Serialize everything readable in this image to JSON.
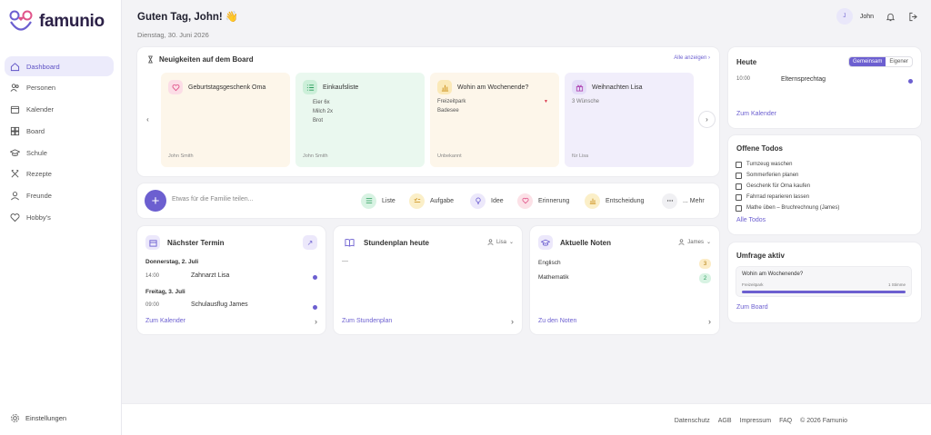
{
  "brand": {
    "name": "famunio"
  },
  "nav": {
    "items": [
      {
        "label": "Dashboard",
        "icon": "home-icon"
      },
      {
        "label": "Personen",
        "icon": "users-icon"
      },
      {
        "label": "Kalender",
        "icon": "calendar-icon"
      },
      {
        "label": "Board",
        "icon": "board-icon"
      },
      {
        "label": "Schule",
        "icon": "school-icon"
      },
      {
        "label": "Rezepte",
        "icon": "recipes-icon"
      },
      {
        "label": "Freunde",
        "icon": "user-icon"
      },
      {
        "label": "Hobby's",
        "icon": "heart-icon"
      }
    ],
    "settings": "Einstellungen"
  },
  "header": {
    "greeting": "Guten Tag, John! 👋",
    "date": "Dienstag, 30. Juni 2026",
    "user_initial": "J",
    "user_name": "John"
  },
  "board": {
    "title": "Neuigkeiten auf dem Board",
    "show_all": "Alle anzeigen ›",
    "cards": [
      {
        "title": "Geburtstagsgeschenk Oma",
        "lines": [],
        "footer": "John Smith"
      },
      {
        "title": "Einkaufsliste",
        "lines": [
          "Eier 6x",
          "Milch 2x",
          "Brot"
        ],
        "footer": "John Smith"
      },
      {
        "title": "Wohin am Wochenende?",
        "lines": [
          "Freizeitpark",
          "Badesee"
        ],
        "footer": "Unbekannt"
      },
      {
        "title": "Weihnachten Lisa",
        "lines": [
          "3 Wünsche"
        ],
        "footer": "für Lisa"
      }
    ]
  },
  "composer": {
    "placeholder": "Etwas für die Familie teilen...",
    "chips": [
      "Liste",
      "Aufgabe",
      "Idee",
      "Erinnerung",
      "Entscheidung",
      "... Mehr"
    ]
  },
  "next_appointment": {
    "title": "Nächster Termin",
    "days": [
      {
        "label": "Donnerstag, 2. Juli",
        "time": "14:00",
        "event": "Zahnarzt Lisa"
      },
      {
        "label": "Freitag, 3. Juli",
        "time": "09:00",
        "event": "Schulausflug James"
      }
    ],
    "link": "Zum Kalender"
  },
  "timetable": {
    "title": "Stundenplan heute",
    "person": "Lisa",
    "empty": "—",
    "link": "Zum Stundenplan"
  },
  "grades": {
    "title": "Aktuelle Noten",
    "person": "James",
    "rows": [
      {
        "subject": "Englisch",
        "grade": "3"
      },
      {
        "subject": "Mathematik",
        "grade": "2"
      }
    ],
    "link": "Zu den Noten"
  },
  "today": {
    "title": "Heute",
    "toggle": [
      "Gemeinsam",
      "Eigener"
    ],
    "time": "10:00",
    "event": "Elternsprechtag",
    "link": "Zum Kalender"
  },
  "todos": {
    "title": "Offene Todos",
    "items": [
      "Turnzeug waschen",
      "Sommerferien planen",
      "Geschenk für Oma kaufen",
      "Fahrrad reparieren lassen",
      "Mathe üben – Bruchrechnung (James)"
    ],
    "link": "Alle Todos"
  },
  "poll": {
    "title": "Umfrage aktiv",
    "question": "Wohin am Wochenende?",
    "option": "Freizeitpark",
    "votes": "1 Stimme",
    "fill": 1.0,
    "link": "Zum Board"
  },
  "footer": {
    "links": [
      "Datenschutz",
      "AGB",
      "Impressum",
      "FAQ",
      "© 2026 Famunio"
    ]
  },
  "colors": {
    "accent": "#6c5fd0"
  }
}
